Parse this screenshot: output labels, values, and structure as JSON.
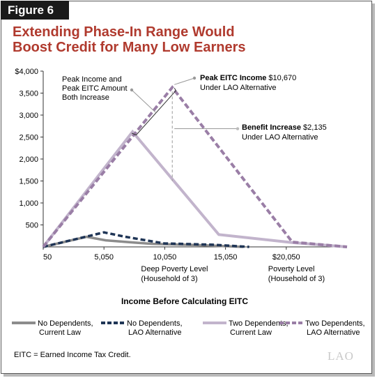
{
  "figure_label": "Figure 6",
  "title_line1": "Extending Phase-In Range Would",
  "title_line2": "Boost Credit for Many Low Earners",
  "footnote": "EITC = Earned Income Tax Credit.",
  "logo_text": "LAO",
  "colors": {
    "title": "#b03a2e",
    "no_dep": "#8c8c8c",
    "no_dep_alt": "#1f3556",
    "two_dep": "#c2b4cc",
    "two_dep_alt": "#9a7ea6"
  },
  "chart_data": {
    "type": "line",
    "xlabel": "Income Before Calculating EITC",
    "ylabel": "",
    "xlim": [
      50,
      25050
    ],
    "ylim": [
      0,
      4000
    ],
    "x_ticks": [
      {
        "value": 50,
        "label": "50"
      },
      {
        "value": 5050,
        "label": "5,050"
      },
      {
        "value": 10050,
        "label": "10,050"
      },
      {
        "value": 15050,
        "label": "15,050"
      },
      {
        "value": 20050,
        "label": "$20,050"
      }
    ],
    "y_ticks": [
      {
        "value": 500,
        "label": "500"
      },
      {
        "value": 1000,
        "label": "1,000"
      },
      {
        "value": 1500,
        "label": "1,500"
      },
      {
        "value": 2000,
        "label": "2,000"
      },
      {
        "value": 2500,
        "label": "2,500"
      },
      {
        "value": 3000,
        "label": "3,000"
      },
      {
        "value": 3500,
        "label": "3,500"
      },
      {
        "value": 4000,
        "label": "$4,000"
      }
    ],
    "series": [
      {
        "name": "No Dependents, Current Law",
        "key": "no_dep",
        "dashed": false,
        "points": [
          [
            50,
            0
          ],
          [
            3600,
            230
          ],
          [
            5200,
            150
          ],
          [
            7500,
            100
          ],
          [
            9000,
            70
          ],
          [
            13000,
            40
          ],
          [
            16500,
            0
          ]
        ]
      },
      {
        "name": "No Dependents, LAO Alternative",
        "key": "no_dep_alt",
        "dashed": true,
        "points": [
          [
            50,
            0
          ],
          [
            5050,
            330
          ],
          [
            6800,
            230
          ],
          [
            10000,
            80
          ],
          [
            14000,
            50
          ],
          [
            17000,
            0
          ]
        ]
      },
      {
        "name": "Two Dependents, Current Law",
        "key": "two_dep",
        "dashed": false,
        "points": [
          [
            50,
            0
          ],
          [
            7400,
            2620
          ],
          [
            14500,
            280
          ],
          [
            20500,
            100
          ],
          [
            25050,
            0
          ]
        ]
      },
      {
        "name": "Two Dependents, LAO Alternative",
        "key": "two_dep_alt",
        "dashed": true,
        "points": [
          [
            50,
            0
          ],
          [
            10670,
            3630
          ],
          [
            20550,
            110
          ],
          [
            25050,
            0
          ]
        ]
      }
    ],
    "annotations": {
      "peak_both": {
        "line1": "Peak Income and",
        "line2": "Peak EITC Amount",
        "line3": "Both Increase"
      },
      "peak_eitc": {
        "bold": "Peak EITC Income",
        "value": " $10,670",
        "line2": "Under LAO Alternative"
      },
      "benefit": {
        "bold": "Benefit Increase",
        "value": " $2,135",
        "line2": "Under LAO Alternative"
      },
      "deep_poverty": {
        "line1": "Deep Poverty Level",
        "line2": "(Household of 3)",
        "x": 10050
      },
      "poverty": {
        "line1": "Poverty Level",
        "line2": "(Household of 3)",
        "x": 20050
      }
    },
    "legend_placement": "bottom"
  }
}
